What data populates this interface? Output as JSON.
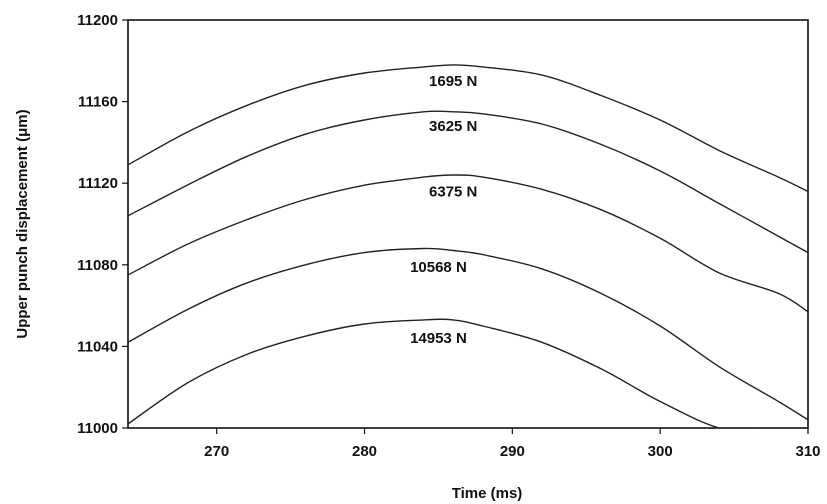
{
  "chart_data": {
    "type": "line",
    "title": "",
    "xlabel": "Time (ms)",
    "ylabel": "Upper punch displacement (μm)",
    "xlim": [
      264,
      310
    ],
    "ylim": [
      11000,
      11200
    ],
    "xticks": [
      270,
      280,
      290,
      300,
      310
    ],
    "yticks": [
      11000,
      11040,
      11080,
      11120,
      11160,
      11200
    ],
    "grid": false,
    "series": [
      {
        "name": "1695 N",
        "x": [
          264,
          268,
          272,
          276,
          280,
          284,
          286,
          288,
          292,
          296,
          300,
          304,
          308,
          310
        ],
        "y": [
          11129,
          11145,
          11158,
          11168,
          11174,
          11177,
          11178,
          11177,
          11173,
          11163,
          11151,
          11136,
          11123,
          11116
        ]
      },
      {
        "name": "3625 N",
        "x": [
          264,
          268,
          272,
          276,
          280,
          284,
          286,
          288,
          292,
          296,
          300,
          304,
          308,
          310
        ],
        "y": [
          11104,
          11119,
          11133,
          11144,
          11151,
          11155,
          11155,
          11154,
          11149,
          11139,
          11126,
          11110,
          11094,
          11086
        ]
      },
      {
        "name": "6375 N",
        "x": [
          264,
          268,
          272,
          276,
          280,
          284,
          286,
          288,
          292,
          296,
          300,
          304,
          308,
          310
        ],
        "y": [
          11075,
          11090,
          11102,
          11112,
          11119,
          11123,
          11124,
          11123,
          11117,
          11107,
          11093,
          11076,
          11066,
          11057
        ]
      },
      {
        "name": "10568 N",
        "x": [
          264,
          268,
          272,
          276,
          280,
          284,
          286,
          288,
          292,
          296,
          300,
          304,
          308,
          310
        ],
        "y": [
          11042,
          11058,
          11071,
          11080,
          11086,
          11088,
          11087,
          11085,
          11078,
          11066,
          11050,
          11030,
          11013,
          11004
        ]
      },
      {
        "name": "14953 N",
        "x": [
          264,
          268,
          272,
          276,
          280,
          284,
          286,
          288,
          292,
          296,
          300,
          304,
          307
        ],
        "y": [
          11002,
          11022,
          11036,
          11045,
          11051,
          11053,
          11053,
          11050,
          11042,
          11029,
          11013,
          11000,
          11000
        ]
      }
    ],
    "annotations": [
      {
        "text": "1695 N",
        "x": 286,
        "y": 11170
      },
      {
        "text": "3625 N",
        "x": 286,
        "y": 11148
      },
      {
        "text": "6375 N",
        "x": 286,
        "y": 11116
      },
      {
        "text": "10568 N",
        "x": 285,
        "y": 11079
      },
      {
        "text": "14953 N",
        "x": 285,
        "y": 11044
      }
    ]
  }
}
